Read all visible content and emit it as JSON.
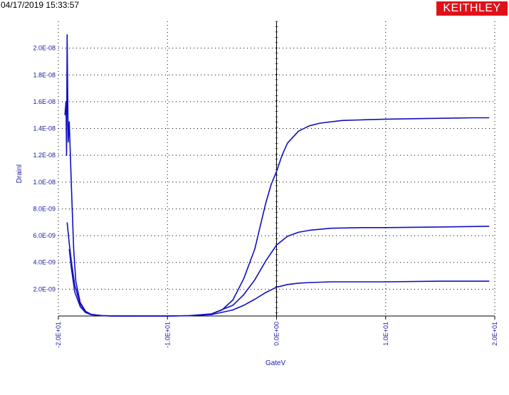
{
  "header": {
    "timestamp": "04/17/2019 15:33:57",
    "brand": "KEITHLEY",
    "brand_color": "#e0101a"
  },
  "chart_data": {
    "type": "line",
    "title": "",
    "xlabel": "GateV",
    "ylabel": "DrainI",
    "xlim": [
      -20,
      20
    ],
    "ylim": [
      0,
      2.2e-08
    ],
    "grid": true,
    "line_color": "#1010c0",
    "x_ticks": [
      {
        "value": -20,
        "label": "-2.0E+01"
      },
      {
        "value": -10,
        "label": "-1.0E+01"
      },
      {
        "value": 0,
        "label": "0.0E+00"
      },
      {
        "value": 10,
        "label": "1.0E+01"
      },
      {
        "value": 20,
        "label": "2.0E+01"
      }
    ],
    "y_ticks": [
      {
        "value": 2e-09,
        "label": "2.0E-09"
      },
      {
        "value": 4e-09,
        "label": "4.0E-09"
      },
      {
        "value": 6e-09,
        "label": "6.0E-09"
      },
      {
        "value": 8e-09,
        "label": "8.0E-09"
      },
      {
        "value": 1e-08,
        "label": "1.0E-08"
      },
      {
        "value": 1.2e-08,
        "label": "1.2E-08"
      },
      {
        "value": 1.4e-08,
        "label": "1.4E-08"
      },
      {
        "value": 1.6e-08,
        "label": "1.6E-08"
      },
      {
        "value": 1.8e-08,
        "label": "1.8E-08"
      },
      {
        "value": 2e-08,
        "label": "2.0E-08"
      }
    ],
    "series": [
      {
        "x": [
          -19.4,
          -19.3,
          -19.25,
          -19.2,
          -19.1,
          -19.0,
          -18.8,
          -18.6,
          -18.4,
          -18.0,
          -17.5,
          -17.0,
          -16.0,
          -15.0,
          -12.0,
          -10.0,
          -8.0,
          -6.0,
          -5.0,
          -4.0,
          -3.0,
          -2.0,
          -1.5,
          -1.0,
          -0.5,
          0.0,
          0.5,
          1.0,
          2.0,
          3.0,
          4.0,
          6.0,
          8.0,
          10.0,
          14.0,
          18.0,
          19.5
        ],
        "y": [
          1.5e-08,
          1.6e-08,
          1.2e-08,
          2.1e-08,
          1.3e-08,
          1.45e-08,
          9.5e-09,
          5e-09,
          2.6e-09,
          1e-09,
          3.5e-10,
          1.2e-10,
          2e-11,
          5e-12,
          1e-12,
          1e-12,
          2e-11,
          1.5e-10,
          4.5e-10,
          1.2e-09,
          2.8e-09,
          5e-09,
          6.7e-09,
          8.4e-09,
          9.8e-09,
          1.08e-08,
          1.2e-08,
          1.29e-08,
          1.38e-08,
          1.42e-08,
          1.44e-08,
          1.46e-08,
          1.465e-08,
          1.47e-08,
          1.475e-08,
          1.48e-08,
          1.48e-08
        ]
      },
      {
        "x": [
          -19.2,
          -19.0,
          -18.8,
          -18.5,
          -18.0,
          -17.5,
          -17.0,
          -16.0,
          -15.0,
          -12.0,
          -10.0,
          -8.0,
          -6.0,
          -4.0,
          -3.0,
          -2.0,
          -1.0,
          0.0,
          1.0,
          2.0,
          3.0,
          5.0,
          8.0,
          10.0,
          15.0,
          19.5
        ],
        "y": [
          7e-09,
          5.4e-09,
          4e-09,
          2.3e-09,
          9e-10,
          3e-10,
          1e-10,
          2e-11,
          5e-12,
          1e-12,
          1e-12,
          2e-11,
          1.5e-10,
          8e-10,
          1.6e-09,
          2.7e-09,
          4.1e-09,
          5.3e-09,
          5.95e-09,
          6.25e-09,
          6.4e-09,
          6.55e-09,
          6.6e-09,
          6.6e-09,
          6.65e-09,
          6.7e-09
        ]
      },
      {
        "x": [
          -19.0,
          -18.8,
          -18.5,
          -18.0,
          -17.5,
          -17.0,
          -16.0,
          -15.0,
          -12.0,
          -10.0,
          -8.0,
          -6.0,
          -4.0,
          -3.0,
          -2.0,
          -1.0,
          0.0,
          1.0,
          2.0,
          3.0,
          5.0,
          10.0,
          15.0,
          19.5
        ],
        "y": [
          5e-09,
          3.5e-09,
          1.8e-09,
          7e-10,
          2.5e-10,
          1e-10,
          2e-11,
          5e-12,
          1e-12,
          1e-12,
          2e-11,
          1e-10,
          4.5e-10,
          8e-10,
          1.25e-09,
          1.75e-09,
          2.15e-09,
          2.35e-09,
          2.45e-09,
          2.5e-09,
          2.55e-09,
          2.55e-09,
          2.6e-09,
          2.6e-09
        ]
      }
    ]
  }
}
